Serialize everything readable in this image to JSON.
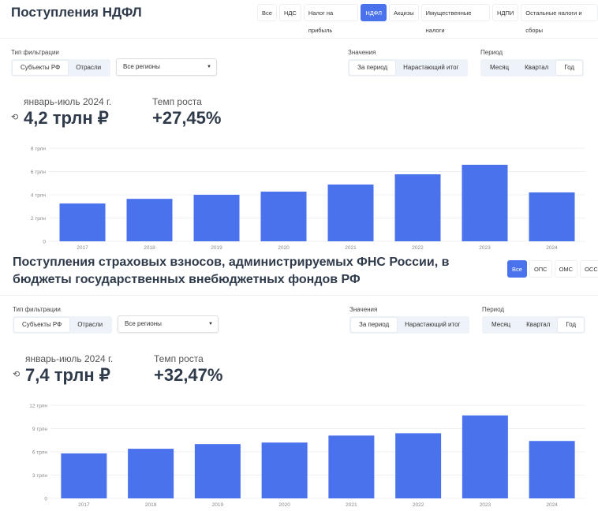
{
  "section1": {
    "title": "Поступления НДФЛ",
    "tabs": [
      "Все",
      "НДС",
      "Налог на прибыль",
      "НДФЛ",
      "Акцизы",
      "Имущественные налоги",
      "НДПИ",
      "Остальные налоги и сборы"
    ],
    "active_tab": 3,
    "filter_label": "Тип фильтрации",
    "filter_options": [
      "Субъекты РФ",
      "Отрасли"
    ],
    "region": "Все регионы",
    "values_label": "Значения",
    "values_options": [
      "За период",
      "Нарастающий итог"
    ],
    "period_label": "Период",
    "period_options": [
      "Месяц",
      "Квартал",
      "Год"
    ],
    "period_text": "январь-июль 2024 г.",
    "total": "4,2 трлн ₽",
    "growth_label": "Темп роста",
    "growth": "+27,45%"
  },
  "section2": {
    "title": "Поступления страховых взносов, администрируемых ФНС России, в бюджеты государственных внебюджетных фондов РФ",
    "tabs": [
      "Все",
      "ОПС",
      "ОМС",
      "ОСС"
    ],
    "active_tab": 0,
    "filter_label": "Тип фильтрации",
    "filter_options": [
      "Субъекты РФ",
      "Отрасли"
    ],
    "region": "Все регионы",
    "values_label": "Значения",
    "values_options": [
      "За период",
      "Нарастающий итог"
    ],
    "period_label": "Период",
    "period_options": [
      "Месяц",
      "Квартал",
      "Год"
    ],
    "period_text": "январь-июль 2024 г.",
    "total": "7,4 трлн ₽",
    "growth_label": "Темп роста",
    "growth": "+32,47%"
  },
  "bar_color": "#4a72ec",
  "chart_data": [
    {
      "type": "bar",
      "categories": [
        "2017",
        "2018",
        "2019",
        "2020",
        "2021",
        "2022",
        "2023",
        "2024"
      ],
      "values": [
        3.25,
        3.65,
        4.0,
        4.27,
        4.88,
        5.76,
        6.58,
        4.2
      ],
      "yticks": [
        "0",
        "2 трлн",
        "4 трлн",
        "6 трлн",
        "8 трлн"
      ],
      "ylim": [
        0,
        8
      ],
      "grid": true
    },
    {
      "type": "bar",
      "categories": [
        "2017",
        "2018",
        "2019",
        "2020",
        "2021",
        "2022",
        "2023",
        "2024"
      ],
      "values": [
        5.8,
        6.4,
        7.0,
        7.2,
        8.1,
        8.4,
        10.7,
        7.4
      ],
      "yticks": [
        "0",
        "3 трлн",
        "6 трлн",
        "9 трлн",
        "12 трлн"
      ],
      "ylim": [
        0,
        12
      ],
      "grid": true
    }
  ]
}
